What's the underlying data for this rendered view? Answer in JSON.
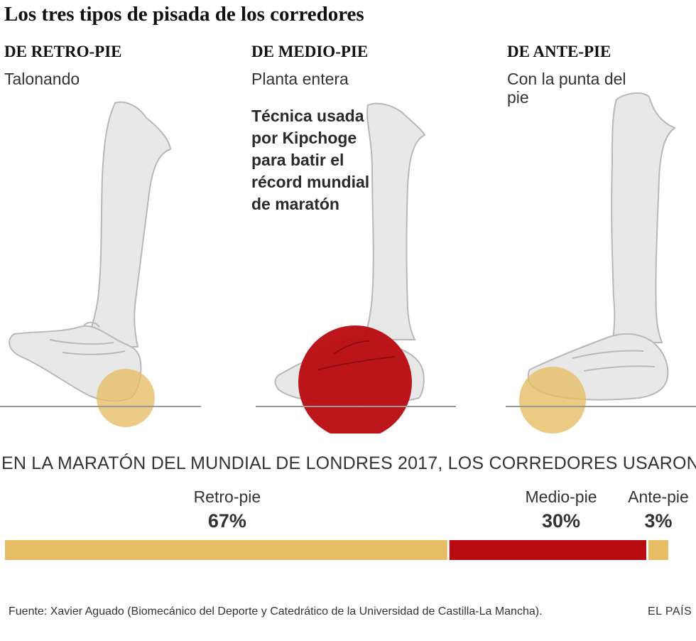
{
  "title": "Los tres tipos de pisada de los corredores",
  "columns": [
    {
      "heading": "DE RETRO-PIE",
      "subtitle": "Talonando"
    },
    {
      "heading": "DE MEDIO-PIE",
      "subtitle": "Planta entera"
    },
    {
      "heading": "DE ANTE-PIE",
      "subtitle": "Con la punta del pie"
    }
  ],
  "note": "Técnica usada por Kipchoge para batir el récord mundial de maratón",
  "colors": {
    "retro": "#e6bd64",
    "medio": "#b90c12",
    "ante": "#e6bd64",
    "leg": "#e8e8e8",
    "outline": "#b8b8b8"
  },
  "chart_data": {
    "type": "bar",
    "orientation": "horizontal-stacked",
    "title": "EN LA MARATÓN DEL MUNDIAL DE LONDRES 2017, LOS CORREDORES USARON...",
    "categories": [
      "Retro-pie",
      "Medio-pie",
      "Ante-pie"
    ],
    "values": [
      67,
      30,
      3
    ],
    "value_labels": [
      "67%",
      "30%",
      "3%"
    ],
    "colors": [
      "#e6bd64",
      "#b90c12",
      "#e6bd64"
    ]
  },
  "source": "Fuente: Xavier Aguado (Biomecánico del Deporte y Catedrático de la Universidad de Castilla-La Mancha).",
  "brand": "EL PAÍS"
}
